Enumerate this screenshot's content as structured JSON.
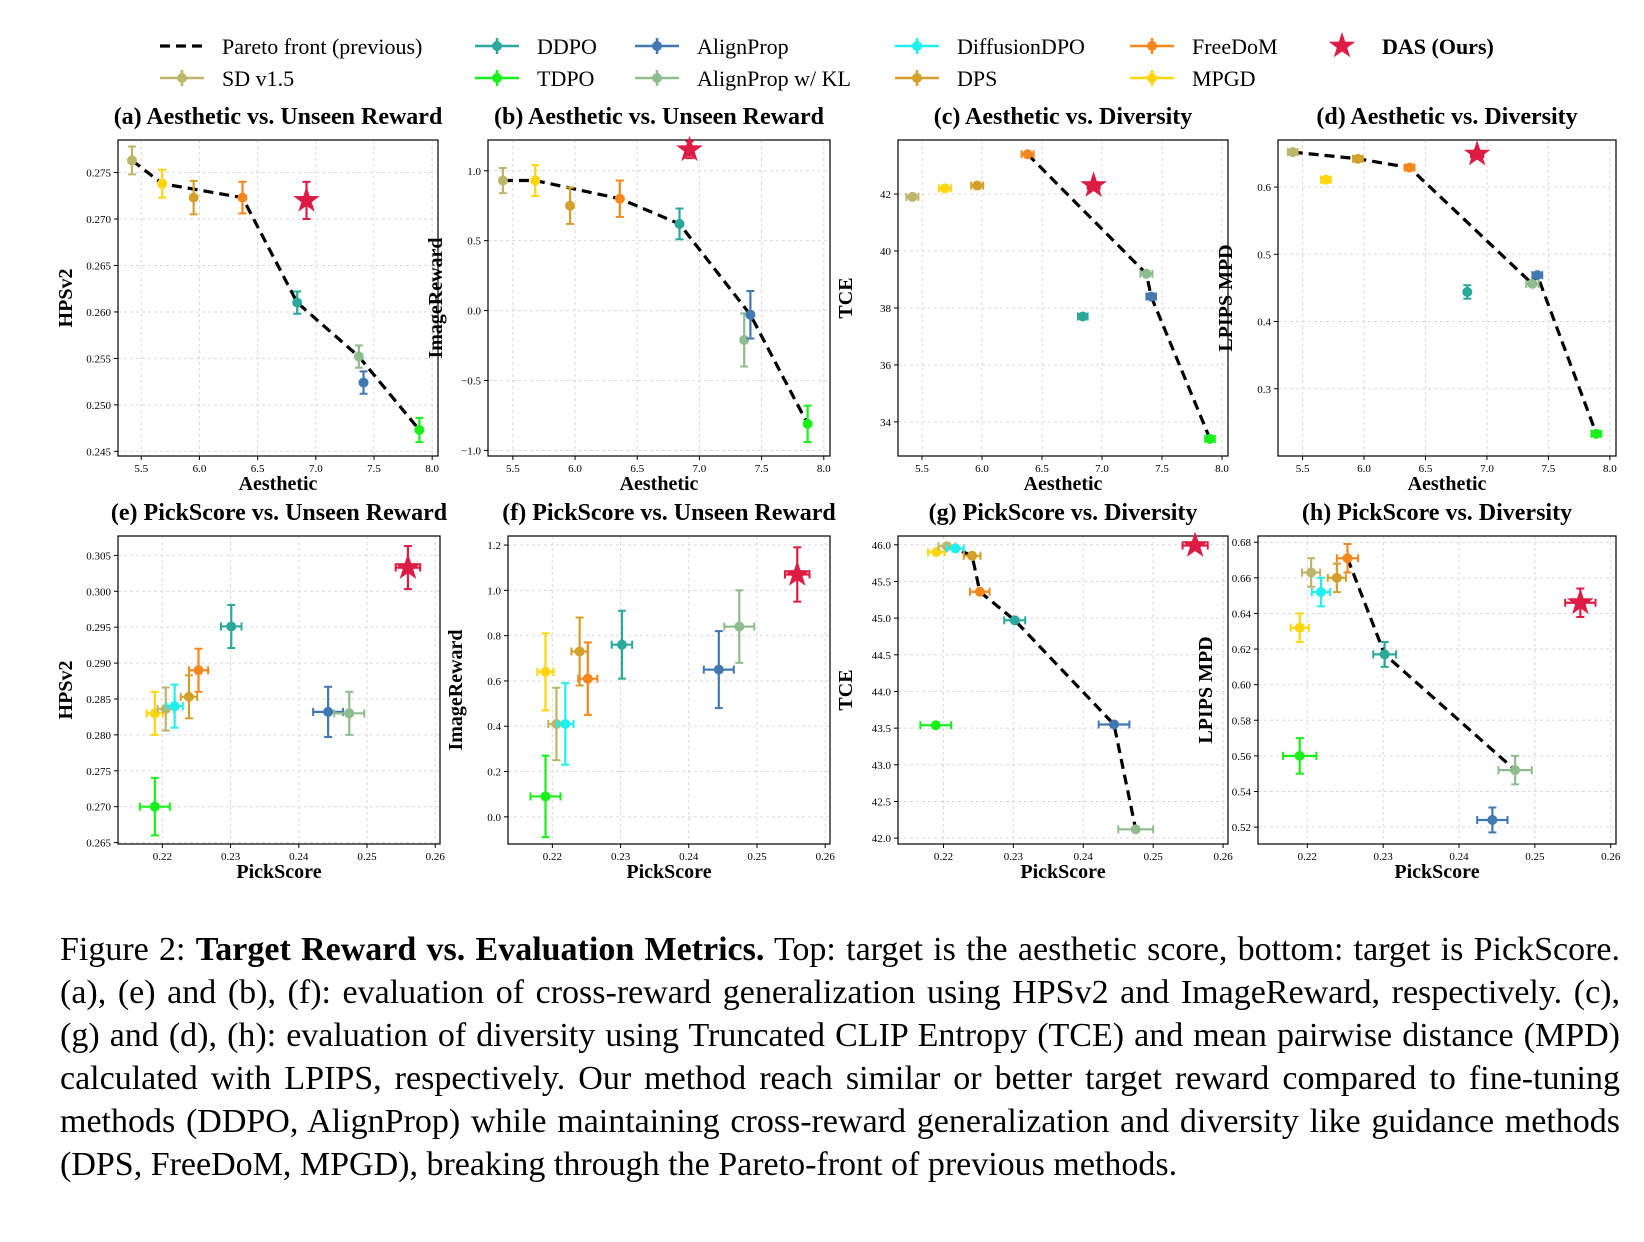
{
  "legend": {
    "pareto_label": "Pareto front (previous)",
    "entries": [
      {
        "key": "sd",
        "label": "SD v1.5",
        "color": "#bdb56a",
        "marker": "circle"
      },
      {
        "key": "ddpo",
        "label": "DDPO",
        "color": "#2ba89a",
        "marker": "circle"
      },
      {
        "key": "tdpo",
        "label": "TDPO",
        "color": "#19f019",
        "marker": "circle"
      },
      {
        "key": "alignprop",
        "label": "AlignProp",
        "color": "#4278b0",
        "marker": "circle"
      },
      {
        "key": "alignprop_kl",
        "label": "AlignProp w/ KL",
        "color": "#8fbc8f",
        "marker": "circle"
      },
      {
        "key": "diffusiondpo",
        "label": "DiffusionDPO",
        "color": "#1ef0f0",
        "marker": "circle"
      },
      {
        "key": "dps",
        "label": "DPS",
        "color": "#d3a02c",
        "marker": "circle"
      },
      {
        "key": "freedom",
        "label": "FreeDoM",
        "color": "#f5871c",
        "marker": "circle"
      },
      {
        "key": "mpgd",
        "label": "MPGD",
        "color": "#ffd60a",
        "marker": "circle"
      },
      {
        "key": "das",
        "label": "DAS (Ours)",
        "color": "#dc1c44",
        "marker": "star"
      }
    ]
  },
  "chart_data": [
    {
      "type": "scatter",
      "id": "a",
      "title": "(a) Aesthetic vs. Unseen Reward",
      "xlabel": "Aesthetic",
      "ylabel": "HPSv2",
      "xlim": [
        5.3,
        8.05
      ],
      "ylim": [
        0.2445,
        0.2785
      ],
      "xticks": [
        "5.5",
        "6.0",
        "6.5",
        "7.0",
        "7.5",
        "8.0"
      ],
      "yticks": [
        "0.245",
        "0.250",
        "0.255",
        "0.260",
        "0.265",
        "0.270",
        "0.275"
      ],
      "points": [
        {
          "method": "sd",
          "x": 5.42,
          "y": 0.2763,
          "yerr": 0.0015
        },
        {
          "method": "mpgd",
          "x": 5.68,
          "y": 0.2738,
          "yerr": 0.0015
        },
        {
          "method": "dps",
          "x": 5.95,
          "y": 0.2723,
          "yerr": 0.0018
        },
        {
          "method": "freedom",
          "x": 6.37,
          "y": 0.2723,
          "yerr": 0.0017
        },
        {
          "method": "ddpo",
          "x": 6.84,
          "y": 0.261,
          "yerr": 0.0012
        },
        {
          "method": "alignprop_kl",
          "x": 7.37,
          "y": 0.2552,
          "yerr": 0.0012
        },
        {
          "method": "alignprop",
          "x": 7.41,
          "y": 0.2524,
          "yerr": 0.0012
        },
        {
          "method": "tdpo",
          "x": 7.89,
          "y": 0.2473,
          "yerr": 0.0013
        },
        {
          "method": "das",
          "x": 6.92,
          "y": 0.272,
          "yerr": 0.002
        }
      ],
      "pareto": [
        [
          5.42,
          0.2763
        ],
        [
          5.68,
          0.2738
        ],
        [
          6.37,
          0.2723
        ],
        [
          6.84,
          0.261
        ],
        [
          7.37,
          0.2552
        ],
        [
          7.89,
          0.2473
        ]
      ]
    },
    {
      "type": "scatter",
      "id": "b",
      "title": "(b) Aesthetic vs. Unseen Reward",
      "xlabel": "Aesthetic",
      "ylabel": "ImageReward",
      "xlim": [
        5.3,
        8.05
      ],
      "ylim": [
        -1.04,
        1.22
      ],
      "xticks": [
        "5.5",
        "6.0",
        "6.5",
        "7.0",
        "7.5",
        "8.0"
      ],
      "yticks": [
        "−1.0",
        "−0.5",
        "0.0",
        "0.5",
        "1.0"
      ],
      "points": [
        {
          "method": "sd",
          "x": 5.42,
          "y": 0.93,
          "yerr": 0.09
        },
        {
          "method": "mpgd",
          "x": 5.68,
          "y": 0.93,
          "yerr": 0.11
        },
        {
          "method": "dps",
          "x": 5.96,
          "y": 0.75,
          "yerr": 0.13
        },
        {
          "method": "freedom",
          "x": 6.36,
          "y": 0.8,
          "yerr": 0.13
        },
        {
          "method": "ddpo",
          "x": 6.84,
          "y": 0.62,
          "yerr": 0.11
        },
        {
          "method": "alignprop_kl",
          "x": 7.36,
          "y": -0.21,
          "yerr": 0.19
        },
        {
          "method": "alignprop",
          "x": 7.41,
          "y": -0.03,
          "yerr": 0.17
        },
        {
          "method": "tdpo",
          "x": 7.87,
          "y": -0.81,
          "yerr": 0.13
        },
        {
          "method": "das",
          "x": 6.92,
          "y": 1.15,
          "yerr": 0.06
        }
      ],
      "pareto": [
        [
          5.42,
          0.93
        ],
        [
          5.68,
          0.93
        ],
        [
          6.36,
          0.8
        ],
        [
          6.84,
          0.62
        ],
        [
          7.41,
          -0.03
        ],
        [
          7.87,
          -0.81
        ]
      ]
    },
    {
      "type": "scatter",
      "id": "c",
      "title": "(c) Aesthetic vs. Diversity",
      "xlabel": "Aesthetic",
      "ylabel": "TCE",
      "xlim": [
        5.3,
        8.05
      ],
      "ylim": [
        32.8,
        43.9
      ],
      "xticks": [
        "5.5",
        "6.0",
        "6.5",
        "7.0",
        "7.5",
        "8.0"
      ],
      "yticks": [
        "34",
        "36",
        "38",
        "40",
        "42"
      ],
      "points": [
        {
          "method": "sd",
          "x": 5.42,
          "y": 41.9,
          "xerr": 0.05
        },
        {
          "method": "mpgd",
          "x": 5.69,
          "y": 42.2,
          "xerr": 0.05
        },
        {
          "method": "dps",
          "x": 5.96,
          "y": 42.3,
          "xerr": 0.05
        },
        {
          "method": "freedom",
          "x": 6.38,
          "y": 43.4,
          "xerr": 0.05
        },
        {
          "method": "ddpo",
          "x": 6.84,
          "y": 37.7,
          "xerr": 0.04
        },
        {
          "method": "alignprop_kl",
          "x": 7.37,
          "y": 39.2,
          "xerr": 0.05
        },
        {
          "method": "alignprop",
          "x": 7.41,
          "y": 38.4,
          "xerr": 0.04
        },
        {
          "method": "tdpo",
          "x": 7.9,
          "y": 33.4,
          "xerr": 0.04
        },
        {
          "method": "das",
          "x": 6.93,
          "y": 42.3,
          "xerr": 0.05
        }
      ],
      "pareto": [
        [
          6.38,
          43.4
        ],
        [
          7.37,
          39.2
        ],
        [
          7.41,
          38.4
        ],
        [
          7.9,
          33.4
        ]
      ]
    },
    {
      "type": "scatter",
      "id": "d",
      "title": "(d) Aesthetic vs. Diversity",
      "xlabel": "Aesthetic",
      "ylabel": "LPIPS MPD",
      "xlim": [
        5.3,
        8.05
      ],
      "ylim": [
        0.2,
        0.67
      ],
      "xticks": [
        "5.5",
        "6.0",
        "6.5",
        "7.0",
        "7.5",
        "8.0"
      ],
      "yticks": [
        "0.3",
        "0.4",
        "0.5",
        "0.6"
      ],
      "points": [
        {
          "method": "sd",
          "x": 5.42,
          "y": 0.652,
          "xerr": 0.04
        },
        {
          "method": "mpgd",
          "x": 5.69,
          "y": 0.611,
          "xerr": 0.04
        },
        {
          "method": "dps",
          "x": 5.95,
          "y": 0.642,
          "xerr": 0.04
        },
        {
          "method": "freedom",
          "x": 6.37,
          "y": 0.629,
          "xerr": 0.04
        },
        {
          "method": "ddpo",
          "x": 6.84,
          "y": 0.444,
          "yerr": 0.01
        },
        {
          "method": "alignprop_kl",
          "x": 7.37,
          "y": 0.456,
          "xerr": 0.05
        },
        {
          "method": "alignprop",
          "x": 7.41,
          "y": 0.469,
          "xerr": 0.04
        },
        {
          "method": "tdpo",
          "x": 7.89,
          "y": 0.233,
          "xerr": 0.04
        },
        {
          "method": "das",
          "x": 6.92,
          "y": 0.649,
          "xerr": 0.05
        }
      ],
      "pareto": [
        [
          5.42,
          0.652
        ],
        [
          5.95,
          0.642
        ],
        [
          6.37,
          0.629
        ],
        [
          7.37,
          0.456
        ],
        [
          7.41,
          0.469
        ],
        [
          7.89,
          0.233
        ]
      ]
    },
    {
      "type": "scatter",
      "id": "e",
      "title": "(e) PickScore vs. Unseen Reward",
      "xlabel": "PickScore",
      "ylabel": "HPSv2",
      "xlim": [
        0.2135,
        0.2607
      ],
      "ylim": [
        0.2648,
        0.3077
      ],
      "xticks": [
        "0.22",
        "0.23",
        "0.24",
        "0.25",
        "0.26"
      ],
      "yticks": [
        "0.265",
        "0.270",
        "0.275",
        "0.280",
        "0.285",
        "0.290",
        "0.295",
        "0.300",
        "0.305"
      ],
      "points": [
        {
          "method": "mpgd",
          "x": 0.2189,
          "y": 0.283,
          "xerr": 0.0012,
          "yerr": 0.003
        },
        {
          "method": "sd",
          "x": 0.2205,
          "y": 0.2836,
          "xerr": 0.0012,
          "yerr": 0.003
        },
        {
          "method": "diffusiondpo",
          "x": 0.2218,
          "y": 0.284,
          "xerr": 0.0012,
          "yerr": 0.003
        },
        {
          "method": "dps",
          "x": 0.2239,
          "y": 0.2853,
          "xerr": 0.0012,
          "yerr": 0.003
        },
        {
          "method": "freedom",
          "x": 0.2253,
          "y": 0.289,
          "xerr": 0.0014,
          "yerr": 0.003
        },
        {
          "method": "ddpo",
          "x": 0.2301,
          "y": 0.2951,
          "xerr": 0.0015,
          "yerr": 0.003
        },
        {
          "method": "alignprop",
          "x": 0.2443,
          "y": 0.2832,
          "xerr": 0.0022,
          "yerr": 0.0035
        },
        {
          "method": "alignprop_kl",
          "x": 0.2474,
          "y": 0.283,
          "xerr": 0.0022,
          "yerr": 0.003
        },
        {
          "method": "tdpo",
          "x": 0.2189,
          "y": 0.27,
          "xerr": 0.0022,
          "yerr": 0.004
        },
        {
          "method": "das",
          "x": 0.256,
          "y": 0.3033,
          "xerr": 0.0018,
          "yerr": 0.003
        }
      ],
      "pareto": []
    },
    {
      "type": "scatter",
      "id": "f",
      "title": "(f) PickScore vs. Unseen Reward",
      "xlabel": "PickScore",
      "ylabel": "ImageReward",
      "xlim": [
        0.2135,
        0.2607
      ],
      "ylim": [
        -0.12,
        1.24
      ],
      "xticks": [
        "0.22",
        "0.23",
        "0.24",
        "0.25",
        "0.26"
      ],
      "yticks": [
        "0.0",
        "0.2",
        "0.4",
        "0.6",
        "0.8",
        "1.0",
        "1.2"
      ],
      "points": [
        {
          "method": "mpgd",
          "x": 0.219,
          "y": 0.64,
          "xerr": 0.0012,
          "yerr": 0.17
        },
        {
          "method": "sd",
          "x": 0.2206,
          "y": 0.41,
          "xerr": 0.0012,
          "yerr": 0.16
        },
        {
          "method": "diffusiondpo",
          "x": 0.2219,
          "y": 0.41,
          "xerr": 0.0012,
          "yerr": 0.18
        },
        {
          "method": "dps",
          "x": 0.224,
          "y": 0.73,
          "xerr": 0.0012,
          "yerr": 0.15
        },
        {
          "method": "freedom",
          "x": 0.2252,
          "y": 0.61,
          "xerr": 0.0014,
          "yerr": 0.16
        },
        {
          "method": "ddpo",
          "x": 0.2302,
          "y": 0.76,
          "xerr": 0.0015,
          "yerr": 0.15
        },
        {
          "method": "alignprop",
          "x": 0.2444,
          "y": 0.65,
          "xerr": 0.0022,
          "yerr": 0.17
        },
        {
          "method": "alignprop_kl",
          "x": 0.2474,
          "y": 0.84,
          "xerr": 0.0022,
          "yerr": 0.16
        },
        {
          "method": "tdpo",
          "x": 0.219,
          "y": 0.09,
          "xerr": 0.0022,
          "yerr": 0.18
        },
        {
          "method": "das",
          "x": 0.2559,
          "y": 1.07,
          "xerr": 0.0018,
          "yerr": 0.12
        }
      ],
      "pareto": []
    },
    {
      "type": "scatter",
      "id": "g",
      "title": "(g) PickScore vs. Diversity",
      "xlabel": "PickScore",
      "ylabel": "TCE",
      "xlim": [
        0.2135,
        0.2607
      ],
      "ylim": [
        41.92,
        46.12
      ],
      "xticks": [
        "0.22",
        "0.23",
        "0.24",
        "0.25",
        "0.26"
      ],
      "yticks": [
        "42.0",
        "42.5",
        "43.0",
        "43.5",
        "44.0",
        "44.5",
        "45.0",
        "45.5",
        "46.0"
      ],
      "points": [
        {
          "method": "mpgd",
          "x": 0.219,
          "y": 45.9,
          "xerr": 0.0012
        },
        {
          "method": "sd",
          "x": 0.2205,
          "y": 45.98,
          "xerr": 0.0012
        },
        {
          "method": "diffusiondpo",
          "x": 0.2217,
          "y": 45.95,
          "xerr": 0.0012
        },
        {
          "method": "dps",
          "x": 0.2241,
          "y": 45.85,
          "xerr": 0.0012
        },
        {
          "method": "freedom",
          "x": 0.2252,
          "y": 45.36,
          "xerr": 0.0014
        },
        {
          "method": "ddpo",
          "x": 0.2302,
          "y": 44.97,
          "xerr": 0.0015
        },
        {
          "method": "alignprop",
          "x": 0.2444,
          "y": 43.55,
          "xerr": 0.0022
        },
        {
          "method": "alignprop_kl",
          "x": 0.2475,
          "y": 42.12,
          "xerr": 0.0025
        },
        {
          "method": "tdpo",
          "x": 0.2189,
          "y": 43.54,
          "xerr": 0.0022
        },
        {
          "method": "das",
          "x": 0.256,
          "y": 45.99,
          "xerr": 0.0018
        }
      ],
      "pareto": [
        [
          0.2205,
          45.98
        ],
        [
          0.2217,
          45.95
        ],
        [
          0.2241,
          45.85
        ],
        [
          0.2252,
          45.36
        ],
        [
          0.2302,
          44.97
        ],
        [
          0.2444,
          43.55
        ],
        [
          0.2475,
          42.12
        ]
      ]
    },
    {
      "type": "scatter",
      "id": "h",
      "title": "(h) PickScore vs. Diversity",
      "xlabel": "PickScore",
      "ylabel": "LPIPS MPD",
      "xlim": [
        0.2135,
        0.2607
      ],
      "ylim": [
        0.5105,
        0.6835
      ],
      "xticks": [
        "0.22",
        "0.23",
        "0.24",
        "0.25",
        "0.26"
      ],
      "yticks": [
        "0.52",
        "0.54",
        "0.56",
        "0.58",
        "0.60",
        "0.62",
        "0.64",
        "0.66",
        "0.68"
      ],
      "points": [
        {
          "method": "mpgd",
          "x": 0.219,
          "y": 0.632,
          "xerr": 0.0012,
          "yerr": 0.008
        },
        {
          "method": "sd",
          "x": 0.2205,
          "y": 0.663,
          "xerr": 0.0012,
          "yerr": 0.008
        },
        {
          "method": "diffusiondpo",
          "x": 0.2218,
          "y": 0.652,
          "xerr": 0.0012,
          "yerr": 0.008
        },
        {
          "method": "dps",
          "x": 0.2239,
          "y": 0.66,
          "xerr": 0.0012,
          "yerr": 0.008
        },
        {
          "method": "freedom",
          "x": 0.2253,
          "y": 0.671,
          "xerr": 0.0014,
          "yerr": 0.008
        },
        {
          "method": "ddpo",
          "x": 0.2302,
          "y": 0.617,
          "xerr": 0.0015,
          "yerr": 0.007
        },
        {
          "method": "alignprop",
          "x": 0.2444,
          "y": 0.524,
          "xerr": 0.002,
          "yerr": 0.007
        },
        {
          "method": "alignprop_kl",
          "x": 0.2474,
          "y": 0.552,
          "xerr": 0.0022,
          "yerr": 0.008
        },
        {
          "method": "tdpo",
          "x": 0.219,
          "y": 0.56,
          "xerr": 0.0022,
          "yerr": 0.01
        },
        {
          "method": "das",
          "x": 0.256,
          "y": 0.646,
          "xerr": 0.002,
          "yerr": 0.008
        }
      ],
      "pareto": [
        [
          0.2253,
          0.671
        ],
        [
          0.2302,
          0.617
        ],
        [
          0.2474,
          0.552
        ]
      ]
    }
  ],
  "caption": {
    "prefix": "Figure 2: ",
    "bold": "Target Reward vs. Evaluation Metrics.",
    "text": " Top: target is the aesthetic score, bottom: target is PickScore. (a), (e) and (b), (f): evaluation of cross-reward generalization using HPSv2 and ImageReward, respectively. (c), (g) and (d), (h): evaluation of diversity using Truncated CLIP Entropy (TCE) and mean pairwise distance (MPD) calculated with LPIPS, respectively. Our method reach similar or better target reward compared to fine-tuning methods (DDPO, AlignProp) while maintaining cross-reward generalization and diversity like guidance methods (DPS, FreeDoM, MPGD), breaking through the Pareto-front of previous methods."
  }
}
